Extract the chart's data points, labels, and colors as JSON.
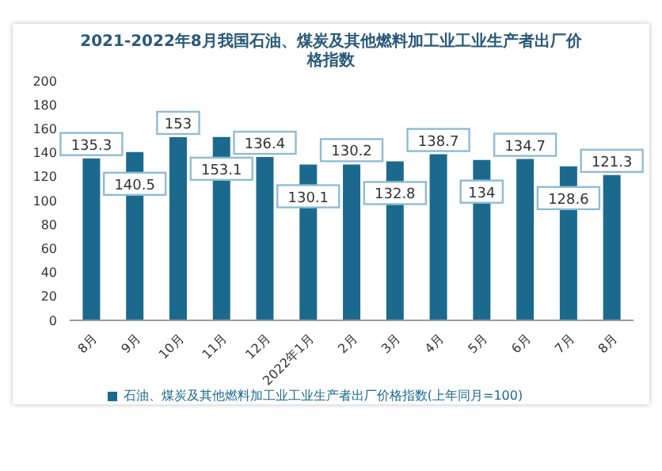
{
  "chart_data": {
    "type": "bar",
    "title": "2021-2022年8月我国石油、煤炭及其他燃料加工业工业生产者出厂价格指数",
    "categories": [
      "8月",
      "9月",
      "10月",
      "11月",
      "12月",
      "2022年1月",
      "2月",
      "3月",
      "4月",
      "5月",
      "6月",
      "7月",
      "8月"
    ],
    "series": [
      {
        "name": "石油、煤炭及其他燃料加工业工业生产者出厂价格指数(上年同月=100)",
        "color": "#1b6a8e",
        "values": [
          135.3,
          140.5,
          153,
          153.1,
          136.4,
          130.1,
          130.2,
          132.8,
          138.7,
          134,
          134.7,
          128.6,
          121.3
        ]
      }
    ],
    "ylim": [
      0,
      200
    ],
    "yticks": [
      0,
      20,
      40,
      60,
      80,
      100,
      120,
      140,
      160,
      180,
      200
    ],
    "data_labels": true,
    "legend": "bottom"
  }
}
